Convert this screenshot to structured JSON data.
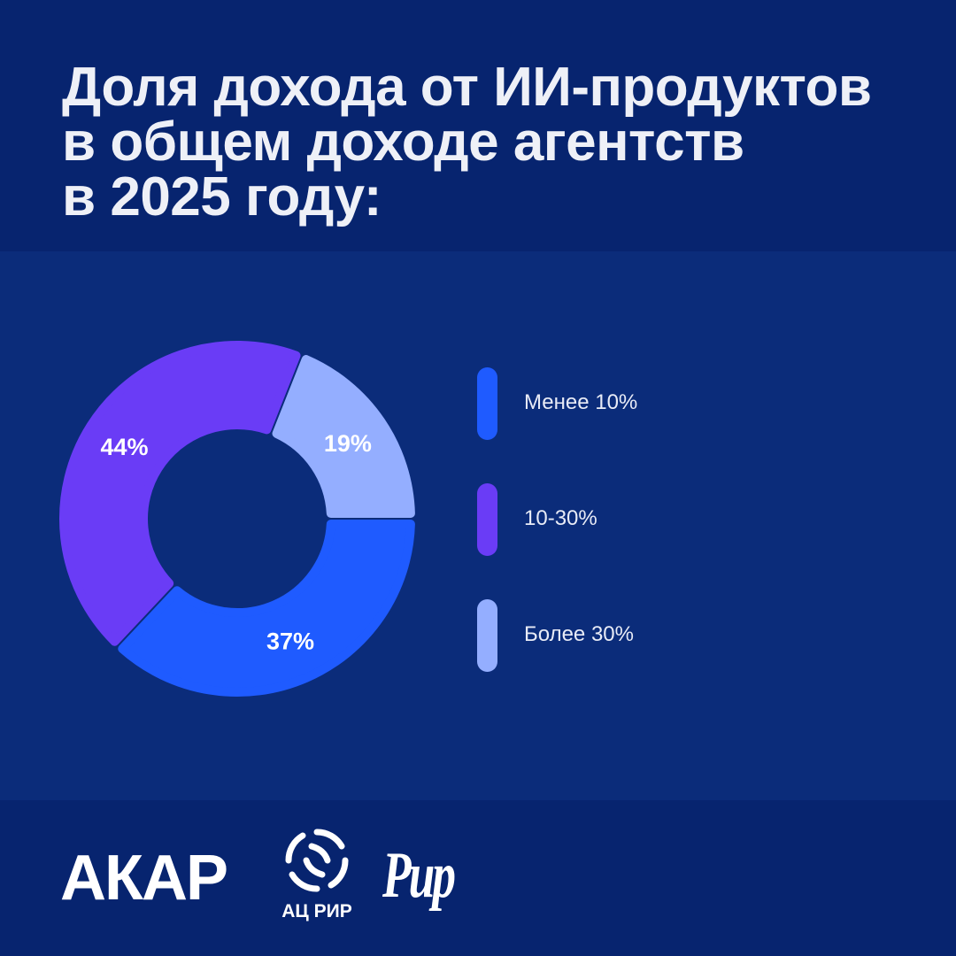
{
  "header": {
    "title_lines": [
      "Доля дохода от ИИ-продуктов",
      "в общем доходе агентств",
      "в 2025 году:"
    ]
  },
  "chart_data": {
    "type": "pie",
    "variant": "donut",
    "title": "Доля дохода от ИИ-продуктов в общем доходе агентств в 2025 году:",
    "categories": [
      "Менее 10%",
      "10-30%",
      "Более 30%"
    ],
    "values": [
      37,
      44,
      19
    ],
    "data_labels": [
      "37%",
      "44%",
      "19%"
    ],
    "colors": [
      "#1f5bff",
      "#6a3cf6",
      "#94aeff"
    ],
    "legend_position": "right",
    "label_color": "#ffffff"
  },
  "footer": {
    "logos": {
      "akar": "АКАР",
      "acrir": "АЦ РИР",
      "rir": "Рир"
    }
  },
  "colors": {
    "background": "#07246f",
    "panel": "#0b2c7a",
    "title_text": "#eef0f7"
  }
}
